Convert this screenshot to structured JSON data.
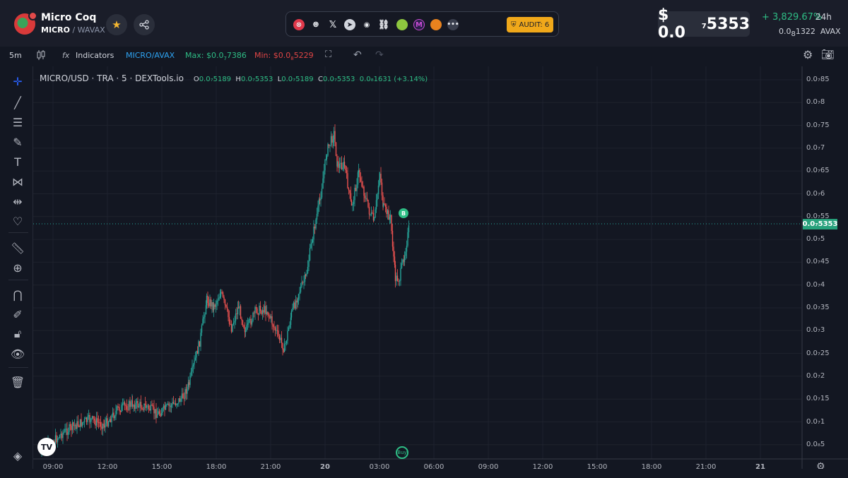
{
  "header": {
    "token_name": "Micro Coq",
    "base": "MICRO",
    "separator": "/",
    "quote": "WAVAX",
    "audit_label": "AUDIT: 6",
    "price_prefix": "$ 0.0",
    "price_sub": "7",
    "price_suffix": "5353",
    "change": "+ 3,829.67%",
    "period": "24h",
    "avax_price_prefix": "0.0",
    "avax_price_sub": "8",
    "avax_price_suffix": "1322",
    "avax_unit": "AVAX",
    "social_icons": [
      "website-icon",
      "globe-icon",
      "x-icon",
      "telegram-icon",
      "discord-icon",
      "link-icon",
      "coingecko-icon",
      "cmc-icon",
      "metamask-icon",
      "more-icon"
    ]
  },
  "toolbar": {
    "interval": "5m",
    "indicators": "Indicators",
    "pair": "MICRO/AVAX",
    "max_prefix": "Max: $0.0",
    "max_sub": "7",
    "max_suffix": "7386",
    "min_prefix": "Min: $0.0",
    "min_sub": "8",
    "min_suffix": "5229"
  },
  "legend": {
    "title": "MICRO/USD · TRA · 5 · DEXTools.io",
    "o_label": "O",
    "h_label": "H",
    "l_label": "L",
    "c_label": "C",
    "o": "0.0₇5189",
    "h": "0.0₇5353",
    "l": "0.0₇5189",
    "c": "0.0₇5353",
    "change": "0.0₈1631 (+3.14%)"
  },
  "price_axis": [
    "0.0₇85",
    "0.0₇8",
    "0.0₇75",
    "0.0₇7",
    "0.0₇65",
    "0.0₇6",
    "0.0₇55",
    "0.0₇5",
    "0.0₇45",
    "0.0₇4",
    "0.0₇35",
    "0.0₇3",
    "0.0₇25",
    "0.0₇2",
    "0.0₇15",
    "0.0₇1",
    "0.0₈5"
  ],
  "last_price_label": "0.0₇5353",
  "time_axis": [
    "09:00",
    "12:00",
    "15:00",
    "18:00",
    "21:00",
    "20",
    "03:00",
    "06:00",
    "09:00",
    "12:00",
    "15:00",
    "18:00",
    "21:00",
    "21"
  ],
  "markers": {
    "b": "B",
    "buy": "Buy"
  },
  "tv_logo": "TV",
  "colors": {
    "up": "#26a69a",
    "down": "#ef5350",
    "accent": "#2ebd85",
    "pair_blue": "#2ea3f2",
    "audit": "#f0a81a"
  }
}
